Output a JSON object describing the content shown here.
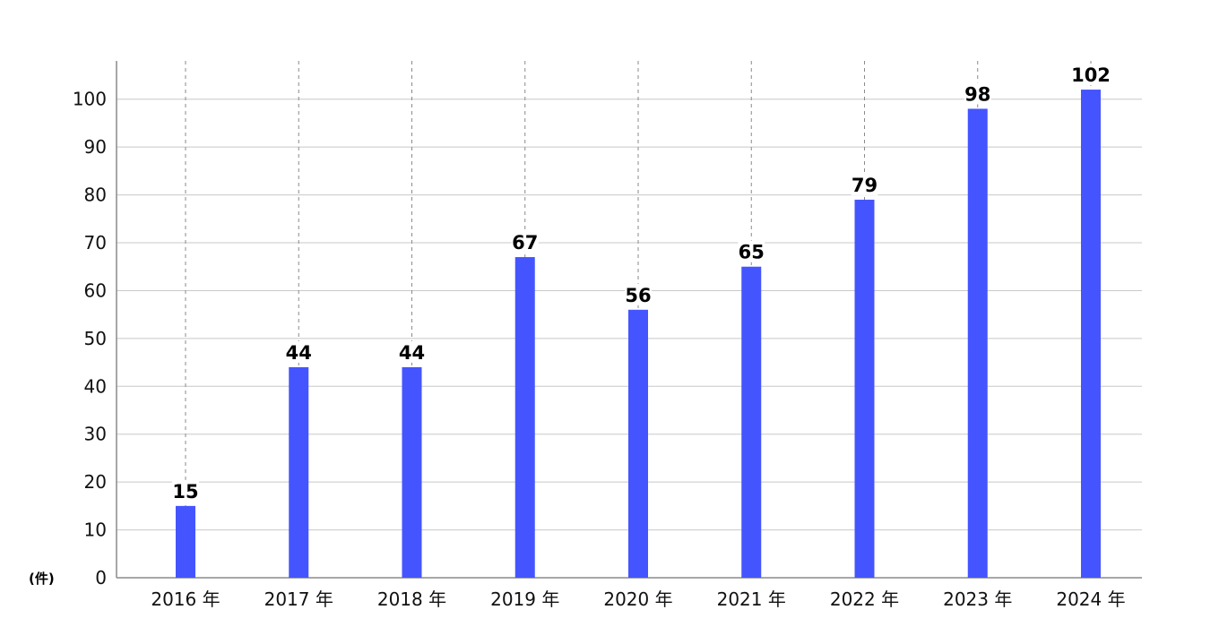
{
  "chart_data": {
    "type": "bar",
    "title": "",
    "ylabel": "",
    "unit": "(件)",
    "categories": [
      "2016 年",
      "2017 年",
      "2018 年",
      "2019 年",
      "2020 年",
      "2021 年",
      "2022 年",
      "2023 年",
      "2024 年"
    ],
    "values": [
      15,
      44,
      44,
      67,
      56,
      65,
      79,
      98,
      102
    ],
    "value_labels": [
      "15",
      "44",
      "44",
      "67",
      "56",
      "65",
      "79",
      "98",
      "102"
    ],
    "ylim": [
      0,
      108
    ],
    "yticks": [
      0,
      10,
      20,
      30,
      40,
      50,
      60,
      70,
      80,
      90,
      100
    ],
    "ytick_labels": [
      "0",
      "10",
      "20",
      "30",
      "40",
      "50",
      "60",
      "70",
      "80",
      "90",
      "100"
    ],
    "grid": true,
    "legend": "none",
    "bar_color": "#4455ff"
  }
}
